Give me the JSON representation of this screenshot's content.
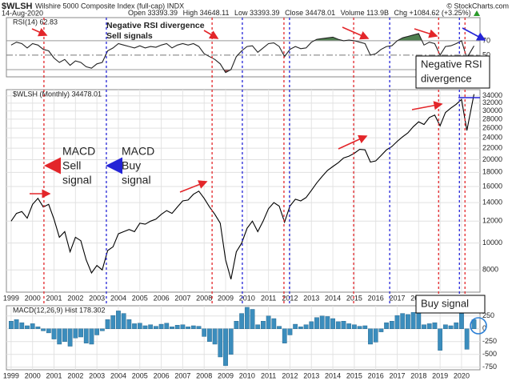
{
  "header": {
    "symbol": "$WLSH",
    "title": "Wilshire 5000 Composite Index (full-cap) INDX",
    "source": "© StockCharts.com",
    "date": "14-Aug-2020",
    "quote": [
      "Open 33393.39",
      "High 34648.11",
      "Low 33393.39",
      "Close 34478.01",
      "Volume 113.9B",
      "Chg +1084.62 (+3.25%)"
    ]
  },
  "chart_data": [
    {
      "type": "line",
      "label": "RSI(14) 62.83",
      "color": "#222222",
      "overbought_color": "#4f7f4f",
      "oversold_color": "#a04848",
      "xlim": [
        1998.78,
        2020.86
      ],
      "ylim": [
        20,
        102
      ],
      "yticks": [
        50,
        70
      ],
      "levels": [
        30,
        70
      ],
      "x": [
        1999,
        1999.25,
        1999.5,
        1999.75,
        2000,
        2000.25,
        2000.5,
        2000.75,
        2001,
        2001.25,
        2001.5,
        2001.75,
        2002,
        2002.25,
        2002.5,
        2002.75,
        2003,
        2003.25,
        2003.5,
        2003.75,
        2004,
        2004.25,
        2004.5,
        2004.75,
        2005,
        2005.25,
        2005.5,
        2005.75,
        2006,
        2006.25,
        2006.5,
        2006.75,
        2007,
        2007.25,
        2007.5,
        2007.75,
        2008,
        2008.25,
        2008.5,
        2008.75,
        2009,
        2009.25,
        2009.5,
        2009.75,
        2010,
        2010.25,
        2010.5,
        2010.75,
        2011,
        2011.25,
        2011.5,
        2011.75,
        2012,
        2012.25,
        2012.5,
        2012.75,
        2013,
        2013.25,
        2013.5,
        2013.75,
        2014,
        2014.25,
        2014.5,
        2014.75,
        2015,
        2015.25,
        2015.5,
        2015.75,
        2016,
        2016.25,
        2016.5,
        2016.75,
        2017,
        2017.25,
        2017.5,
        2017.75,
        2018,
        2018.25,
        2018.5,
        2018.75,
        2019,
        2019.25,
        2019.5,
        2019.75,
        2020,
        2020.25,
        2020.58
      ],
      "values": [
        64,
        68,
        66,
        60,
        66,
        64,
        58,
        56,
        46,
        40,
        44,
        36,
        42,
        40,
        34,
        32,
        38,
        40,
        56,
        60,
        66,
        64,
        62,
        60,
        63,
        60,
        62,
        61,
        64,
        66,
        60,
        64,
        66,
        64,
        66,
        62,
        52,
        48,
        44,
        38,
        26,
        30,
        48,
        56,
        62,
        63,
        54,
        60,
        66,
        67,
        62,
        48,
        58,
        62,
        59,
        60,
        68,
        72,
        73,
        74,
        75,
        72,
        70,
        71,
        70,
        68,
        66,
        50,
        52,
        58,
        62,
        63,
        70,
        74,
        76,
        78,
        80,
        64,
        68,
        66,
        50,
        62,
        63,
        66,
        70,
        46,
        62.83
      ],
      "annotations": [
        {
          "lines": [
            "Negative RSI divergence",
            "Sell signals"
          ],
          "color": "#e3262a"
        },
        {
          "lines": [
            "Negative RSI",
            "divergence"
          ],
          "color": "#000000"
        }
      ]
    },
    {
      "type": "line",
      "label": "$WLSH (Monthly) 34478.01",
      "color": "#000000",
      "log": true,
      "grid": true,
      "xlim": [
        1998.78,
        2020.86
      ],
      "ylim": [
        6650,
        35800
      ],
      "yticks": [
        8000,
        10000,
        12000,
        14000,
        16000,
        18000,
        20000,
        22000,
        24000,
        26000,
        28000,
        30000,
        32000,
        34000
      ],
      "xticks": [
        1999,
        2000,
        2001,
        2002,
        2003,
        2004,
        2005,
        2006,
        2007,
        2008,
        2009,
        2010,
        2011,
        2012,
        2013,
        2014,
        2015,
        2016,
        2017,
        2018,
        2019,
        2020
      ],
      "sell_signals": [
        2000.53,
        2008.37,
        2011.72,
        2014.97,
        2018.93,
        2020.16
      ],
      "sell_color": "#e3262a",
      "buy_signals": [
        2003.44,
        2009.78,
        2011.98,
        2016.65,
        2019.9
      ],
      "buy_color": "#2424d6",
      "x": [
        1999,
        1999.25,
        1999.5,
        1999.75,
        2000,
        2000.25,
        2000.5,
        2000.75,
        2001,
        2001.25,
        2001.5,
        2001.75,
        2002,
        2002.25,
        2002.5,
        2002.75,
        2003,
        2003.25,
        2003.5,
        2003.75,
        2004,
        2004.25,
        2004.5,
        2004.75,
        2005,
        2005.25,
        2005.5,
        2005.75,
        2006,
        2006.25,
        2006.5,
        2006.75,
        2007,
        2007.25,
        2007.5,
        2007.75,
        2008,
        2008.25,
        2008.5,
        2008.75,
        2009,
        2009.25,
        2009.5,
        2009.75,
        2010,
        2010.25,
        2010.5,
        2010.75,
        2011,
        2011.25,
        2011.5,
        2011.75,
        2012,
        2012.25,
        2012.5,
        2012.75,
        2013,
        2013.25,
        2013.5,
        2013.75,
        2014,
        2014.25,
        2014.5,
        2014.75,
        2015,
        2015.25,
        2015.5,
        2015.75,
        2016,
        2016.25,
        2016.5,
        2016.75,
        2017,
        2017.25,
        2017.5,
        2017.75,
        2018,
        2018.25,
        2018.5,
        2018.75,
        2019,
        2019.25,
        2019.5,
        2019.75,
        2020,
        2020.25,
        2020.58
      ],
      "values": [
        12000,
        12800,
        13000,
        12300,
        13800,
        14500,
        13500,
        13800,
        12200,
        10500,
        11000,
        9300,
        10500,
        10200,
        8700,
        7800,
        8300,
        8000,
        9400,
        9700,
        10800,
        11000,
        11200,
        11000,
        11800,
        11700,
        12000,
        12200,
        12700,
        13100,
        12800,
        13500,
        14200,
        14300,
        15000,
        15400,
        14500,
        13500,
        12700,
        11800,
        8700,
        7400,
        9300,
        10000,
        11300,
        12000,
        11000,
        12000,
        13300,
        14000,
        13600,
        11900,
        13600,
        14400,
        14200,
        14600,
        15500,
        16500,
        17400,
        18300,
        18900,
        19500,
        20300,
        20600,
        21100,
        21800,
        21700,
        19600,
        19800,
        20700,
        21700,
        22300,
        23300,
        24200,
        25000,
        26300,
        27400,
        26800,
        28400,
        29000,
        26500,
        29600,
        30700,
        31700,
        33000,
        25500,
        34478.01
      ],
      "annotations": [
        {
          "lines": [
            "MACD",
            "Sell",
            "signal"
          ],
          "color": "#e3262a"
        },
        {
          "lines": [
            "MACD",
            "Buy",
            "signal"
          ],
          "color": "#2424d6"
        }
      ]
    },
    {
      "type": "bar",
      "label": "MACD(12,26,9) Hist 178.302",
      "color": "#3b8dbd",
      "grid": true,
      "xlim": [
        1998.78,
        2020.86
      ],
      "ylim": [
        -800,
        450
      ],
      "yticks": [
        -750,
        -500,
        -250,
        0,
        250
      ],
      "xticks": [
        1999,
        2000,
        2001,
        2002,
        2003,
        2004,
        2005,
        2006,
        2007,
        2008,
        2009,
        2010,
        2011,
        2012,
        2013,
        2014,
        2015,
        2016,
        2017,
        2018,
        2019,
        2020
      ],
      "x": [
        1999,
        1999.25,
        1999.5,
        1999.75,
        2000,
        2000.25,
        2000.5,
        2000.75,
        2001,
        2001.25,
        2001.5,
        2001.75,
        2002,
        2002.25,
        2002.5,
        2002.75,
        2003,
        2003.25,
        2003.5,
        2003.75,
        2004,
        2004.25,
        2004.5,
        2004.75,
        2005,
        2005.25,
        2005.5,
        2005.75,
        2006,
        2006.25,
        2006.5,
        2006.75,
        2007,
        2007.25,
        2007.5,
        2007.75,
        2008,
        2008.25,
        2008.5,
        2008.75,
        2009,
        2009.25,
        2009.5,
        2009.75,
        2010,
        2010.25,
        2010.5,
        2010.75,
        2011,
        2011.25,
        2011.5,
        2011.75,
        2012,
        2012.25,
        2012.5,
        2012.75,
        2013,
        2013.25,
        2013.5,
        2013.75,
        2014,
        2014.25,
        2014.5,
        2014.75,
        2015,
        2015.25,
        2015.5,
        2015.75,
        2016,
        2016.25,
        2016.5,
        2016.75,
        2017,
        2017.25,
        2017.5,
        2017.75,
        2018,
        2018.25,
        2018.5,
        2018.75,
        2019,
        2019.25,
        2019.5,
        2019.75,
        2020,
        2020.25,
        2020.58
      ],
      "values": [
        150,
        180,
        120,
        60,
        100,
        40,
        -40,
        -80,
        -200,
        -300,
        -250,
        -340,
        -180,
        -160,
        -280,
        -300,
        -120,
        -40,
        180,
        260,
        350,
        300,
        180,
        100,
        110,
        60,
        80,
        50,
        90,
        110,
        40,
        70,
        80,
        40,
        60,
        50,
        -150,
        -250,
        -300,
        -550,
        -720,
        -500,
        150,
        300,
        420,
        380,
        80,
        150,
        250,
        200,
        50,
        -280,
        -120,
        90,
        40,
        80,
        140,
        220,
        250,
        240,
        200,
        140,
        150,
        100,
        80,
        50,
        60,
        -300,
        -260,
        -60,
        120,
        150,
        260,
        300,
        280,
        320,
        420,
        80,
        100,
        120,
        -420,
        80,
        60,
        120,
        300,
        -400,
        178.302
      ],
      "annotations": [
        {
          "lines": [
            "Buy signal"
          ],
          "color": "#000000"
        }
      ]
    }
  ]
}
